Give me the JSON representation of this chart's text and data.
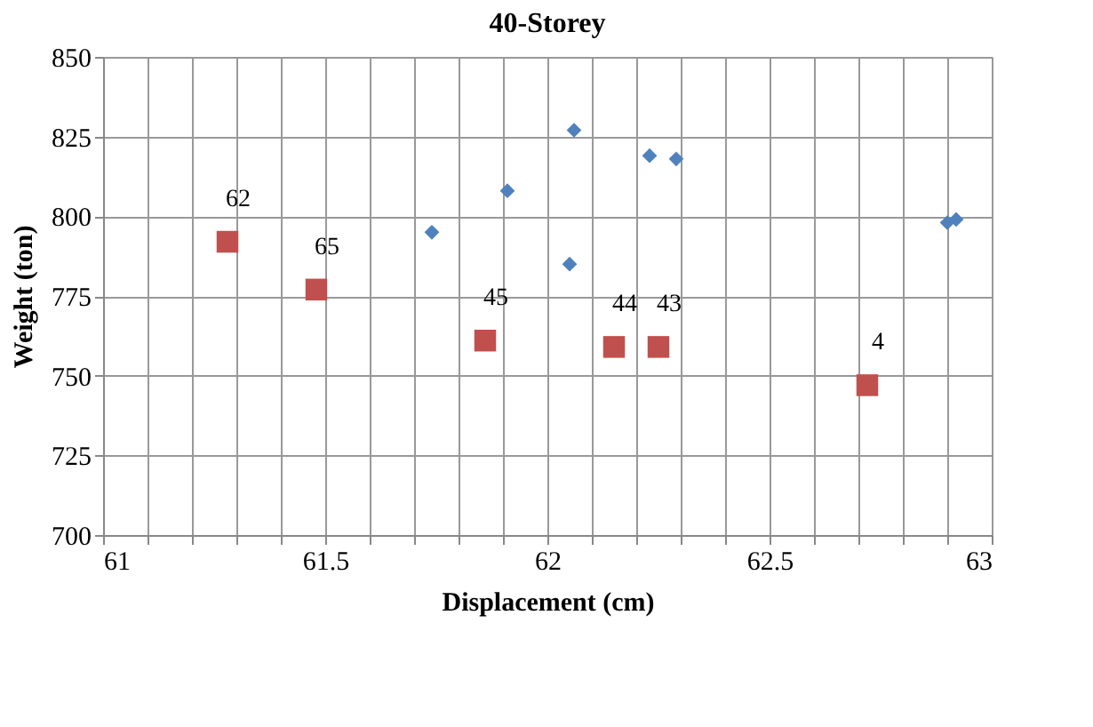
{
  "chart_data": {
    "type": "scatter",
    "title": "40-Storey",
    "xlabel": "Displacement (cm)",
    "ylabel": "Weight (ton)",
    "xlim": [
      61,
      63
    ],
    "xticks": [
      61,
      {
        "value": 61.1,
        "label": null
      },
      {
        "value": 61.2,
        "label": null
      },
      {
        "value": 61.3,
        "label": null
      },
      {
        "value": 61.4,
        "label": null
      },
      61.5,
      {
        "value": 61.6,
        "label": null
      },
      {
        "value": 61.7,
        "label": null
      },
      {
        "value": 61.8,
        "label": null
      },
      {
        "value": 61.9,
        "label": null
      },
      62,
      {
        "value": 62.1,
        "label": null
      },
      {
        "value": 62.2,
        "label": null
      },
      {
        "value": 62.3,
        "label": null
      },
      {
        "value": 62.4,
        "label": null
      },
      62.5,
      {
        "value": 62.6,
        "label": null
      },
      {
        "value": 62.7,
        "label": null
      },
      {
        "value": 62.8,
        "label": null
      },
      {
        "value": 62.9,
        "label": null
      },
      63
    ],
    "ylim": [
      700,
      850
    ],
    "yticks": [
      700,
      725,
      750,
      775,
      800,
      825,
      850
    ],
    "grid": true,
    "series": [
      {
        "color": "#4f81bd",
        "marker": "diamond",
        "x": [
          61.74,
          61.91,
          62.06,
          62.05,
          62.23,
          62.29,
          62.9,
          62.92
        ],
        "values": [
          795,
          808,
          827,
          785,
          819,
          818,
          798,
          799
        ]
      },
      {
        "color": "#c0504d",
        "marker": "square",
        "x": [
          61.28,
          61.48,
          61.86,
          62.15,
          62.25,
          62.72
        ],
        "values": [
          792,
          777,
          761,
          759,
          759,
          747
        ]
      }
    ],
    "annotations": [
      {
        "text": "62",
        "x": 61.28,
        "y": 792
      },
      {
        "text": "65",
        "x": 61.48,
        "y": 777
      },
      {
        "text": "45",
        "x": 61.86,
        "y": 761
      },
      {
        "text": "44",
        "x": 62.15,
        "y": 759
      },
      {
        "text": "43",
        "x": 62.25,
        "y": 759
      },
      {
        "text": "4",
        "x": 62.72,
        "y": 747
      }
    ]
  }
}
